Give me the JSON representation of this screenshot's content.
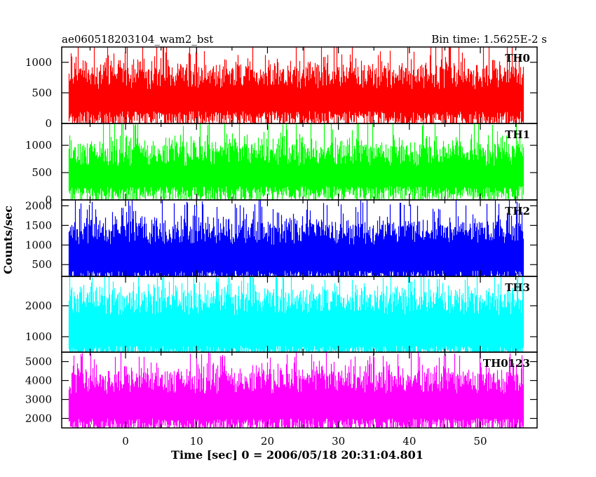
{
  "header": {
    "left": "ae060518203104_wam2_bst",
    "right": "Bin time: 1.5625E-2 s"
  },
  "axis": {
    "xlabel": "Time [sec] 0 = 2006/05/18 20:31:04.801",
    "ylabel": "Counts/sec"
  },
  "chart_data": {
    "type": "line",
    "xlim": [
      -9,
      58
    ],
    "x_ticks": [
      0,
      10,
      20,
      30,
      40,
      50
    ],
    "x_range": [
      -8,
      56
    ],
    "bin_time": 0.015625,
    "grid": false,
    "panels": [
      {
        "label": "TH0",
        "color": "#ff0000",
        "ylim": [
          0,
          1250
        ],
        "y_ticks": [
          0,
          500,
          1000
        ],
        "base": 200,
        "mean": 560,
        "peak": 1250
      },
      {
        "label": "TH1",
        "color": "#00ff00",
        "ylim": [
          0,
          1400
        ],
        "y_ticks": [
          0,
          500,
          1000
        ],
        "base": 250,
        "mean": 620,
        "peak": 1350
      },
      {
        "label": "TH2",
        "color": "#0000ff",
        "ylim": [
          200,
          2150
        ],
        "y_ticks": [
          500,
          1000,
          1500,
          2000
        ],
        "base": 350,
        "mean": 1000,
        "peak": 2000
      },
      {
        "label": "TH3",
        "color": "#00ffff",
        "ylim": [
          500,
          2950
        ],
        "y_ticks": [
          1000,
          2000
        ],
        "base": 700,
        "mean": 1700,
        "peak": 2850
      },
      {
        "label": "TH0123",
        "color": "#ff00ff",
        "ylim": [
          1500,
          5500
        ],
        "y_ticks": [
          2000,
          3000,
          4000,
          5000
        ],
        "base": 2000,
        "mean": 3300,
        "peak": 5200
      }
    ]
  }
}
